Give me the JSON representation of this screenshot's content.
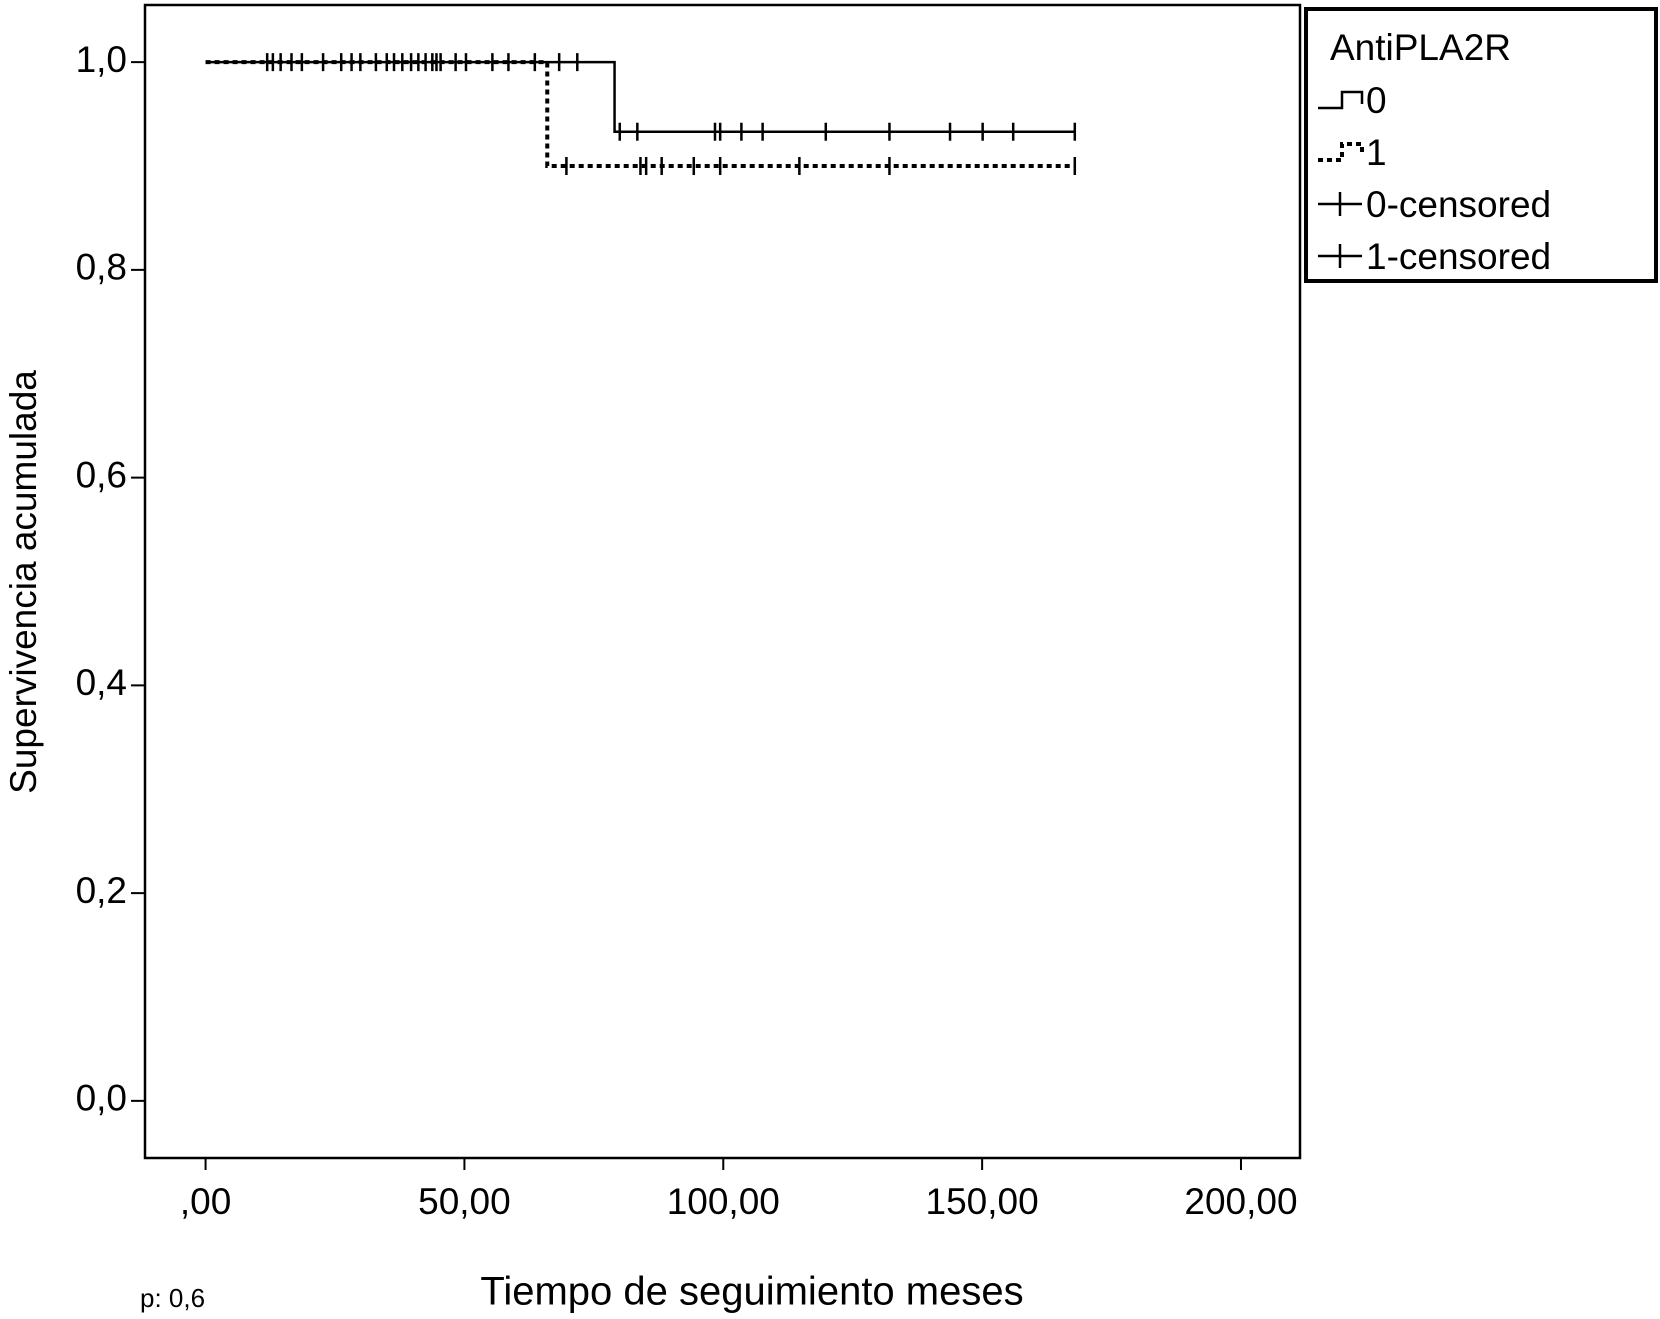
{
  "chart_data": {
    "type": "km",
    "xlabel": "Tiempo  de seguimiento meses",
    "ylabel": "Supervivencia acumulada",
    "annotation": "p: 0,6",
    "legend_title": "AntiPLA2R",
    "legend": "outside-right-top",
    "xlim": [
      -11.7,
      211.4
    ],
    "ylim": [
      -0.055,
      1.055
    ],
    "xticks": [
      {
        "value": 0,
        "label": ",00"
      },
      {
        "value": 50,
        "label": "50,00"
      },
      {
        "value": 100,
        "label": "100,00"
      },
      {
        "value": 150,
        "label": "150,00"
      },
      {
        "value": 200,
        "label": "200,00"
      }
    ],
    "yticks": [
      {
        "value": 0,
        "label": "0,0"
      },
      {
        "value": 0.2,
        "label": "0,2"
      },
      {
        "value": 0.4,
        "label": "0,4"
      },
      {
        "value": 0.6,
        "label": "0,6"
      },
      {
        "value": 0.8,
        "label": "0,8"
      },
      {
        "value": 1,
        "label": "1,0"
      }
    ],
    "series": [
      {
        "name": "0",
        "kind": "step",
        "color": "#000000",
        "x": [
          0,
          79,
          79,
          168
        ],
        "values": [
          1,
          1,
          0.933,
          0.933
        ]
      },
      {
        "name": "1",
        "kind": "step-dashed",
        "color": "#000000",
        "x": [
          0,
          66,
          66,
          168
        ],
        "values": [
          1,
          1,
          0.9,
          0.9
        ]
      },
      {
        "name": "0-censored",
        "kind": "censored",
        "color": "#000000",
        "x": [
          11.9,
          16.6,
          26.2,
          32.9,
          38,
          42.5,
          45.4,
          55.4,
          63.6,
          68.3,
          71.8,
          80,
          83.4,
          98.4,
          99.4,
          103.5,
          107.6,
          119.8,
          132.1,
          143.8,
          150.1,
          156,
          167.9
        ],
        "values": [
          1,
          1,
          1,
          1,
          1,
          1,
          1,
          1,
          1,
          1,
          1,
          0.933,
          0.933,
          0.933,
          0.933,
          0.933,
          0.933,
          0.933,
          0.933,
          0.933,
          0.933,
          0.933,
          0.933
        ]
      },
      {
        "name": "1-censored",
        "kind": "censored",
        "color": "#000000",
        "x": [
          13,
          14.5,
          18.6,
          22.7,
          28.2,
          29.9,
          35,
          36.4,
          39.7,
          41.1,
          43.8,
          44.6,
          48.3,
          50.3,
          58.5,
          69.7,
          84,
          85.1,
          88.1,
          94.3,
          99.4,
          114.7,
          132.1,
          167.9
        ],
        "values": [
          1,
          1,
          1,
          1,
          1,
          1,
          1,
          1,
          1,
          1,
          1,
          1,
          1,
          1,
          1,
          0.9,
          0.9,
          0.9,
          0.9,
          0.9,
          0.9,
          0.9,
          0.9,
          0.9
        ]
      }
    ]
  }
}
